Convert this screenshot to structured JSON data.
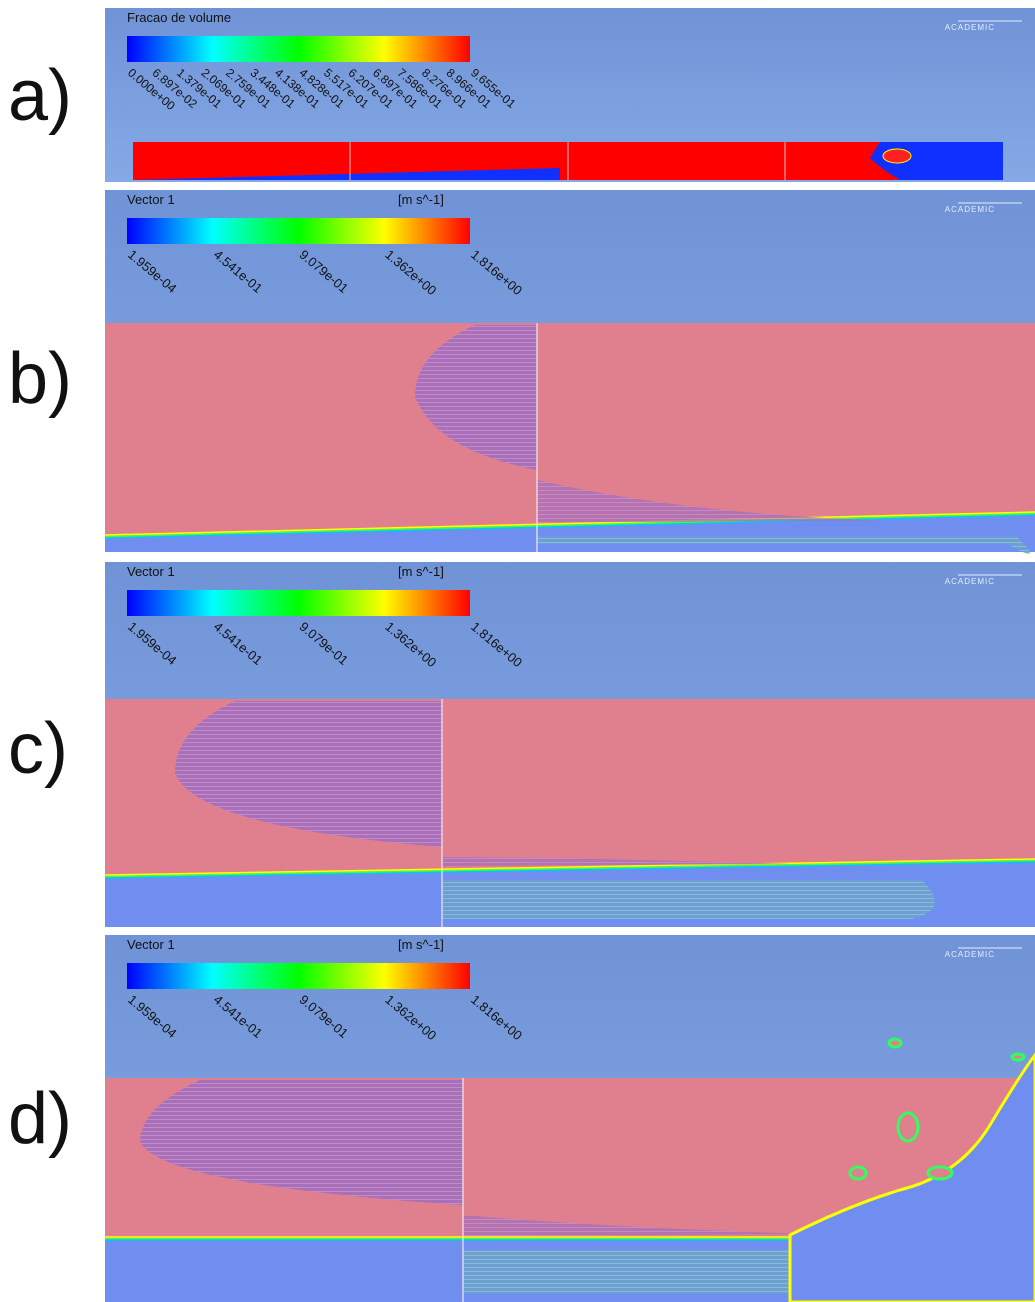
{
  "watermark": "ACADEMIC",
  "panels": [
    {
      "label": "a)",
      "legend_title": "Fracao de volume",
      "ticks": [
        "0.000e+00",
        "6.897e-02",
        "1.379e-01",
        "2.069e-01",
        "2.759e-01",
        "3.448e-01",
        "4.138e-01",
        "4.828e-01",
        "5.517e-01",
        "6.207e-01",
        "6.897e-01",
        "7.586e-01",
        "8.276e-01",
        "8.966e-01",
        "9.655e-01"
      ]
    },
    {
      "label": "b)",
      "legend_title": "Vector 1",
      "unit": "[m s^-1]",
      "ticks": [
        "1.959e-04",
        "4.541e-01",
        "9.079e-01",
        "1.362e+00",
        "1.816e+00"
      ]
    },
    {
      "label": "c)",
      "legend_title": "Vector 1",
      "unit": "[m s^-1]",
      "ticks": [
        "1.959e-04",
        "4.541e-01",
        "9.079e-01",
        "1.362e+00",
        "1.816e+00"
      ]
    },
    {
      "label": "d)",
      "legend_title": "Vector 1",
      "unit": "[m s^-1]",
      "ticks": [
        "1.959e-04",
        "4.541e-01",
        "9.079e-01",
        "1.362e+00",
        "1.816e+00"
      ]
    }
  ]
}
